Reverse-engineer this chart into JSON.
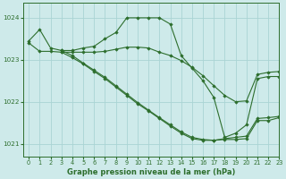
{
  "title": "Graphe pression niveau de la mer (hPa)",
  "bg_color": "#ceeaea",
  "grid_color": "#aad4d4",
  "line_color": "#2d6e2d",
  "xlim": [
    -0.5,
    23
  ],
  "ylim": [
    1020.7,
    1024.35
  ],
  "yticks": [
    1021,
    1022,
    1023,
    1024
  ],
  "xticks": [
    0,
    1,
    2,
    3,
    4,
    5,
    6,
    7,
    8,
    9,
    10,
    11,
    12,
    13,
    14,
    15,
    16,
    17,
    18,
    19,
    20,
    21,
    22,
    23
  ],
  "lines": [
    {
      "x": [
        0,
        1,
        2,
        3,
        4,
        5,
        6,
        7,
        8,
        9,
        10,
        11,
        12,
        13,
        14,
        15,
        16,
        17,
        18,
        19,
        20,
        21,
        22,
        23
      ],
      "y": [
        1023.45,
        1023.72,
        1023.28,
        1023.22,
        1023.22,
        1023.28,
        1023.32,
        1023.5,
        1023.65,
        1024.0,
        1024.0,
        1024.0,
        1024.0,
        1023.85,
        1023.1,
        1022.8,
        1022.5,
        1022.1,
        1021.15,
        1021.25,
        1021.45,
        1022.55,
        1022.6,
        1022.6
      ]
    },
    {
      "x": [
        0,
        1,
        2,
        3,
        4,
        5,
        6,
        7,
        8,
        9,
        10,
        11,
        12,
        13,
        14,
        15,
        16,
        17,
        18,
        19,
        20,
        21,
        22,
        23
      ],
      "y": [
        1023.4,
        1023.2,
        1023.2,
        1023.18,
        1023.18,
        1023.18,
        1023.18,
        1023.2,
        1023.25,
        1023.3,
        1023.3,
        1023.28,
        1023.18,
        1023.1,
        1022.98,
        1022.82,
        1022.62,
        1022.38,
        1022.15,
        1022.0,
        1022.02,
        1022.65,
        1022.7,
        1022.72
      ]
    },
    {
      "x": [
        3,
        4,
        5,
        6,
        7,
        8,
        9,
        10,
        11,
        12,
        13,
        14,
        15,
        16,
        17,
        18,
        19,
        20,
        21,
        22,
        23
      ],
      "y": [
        1023.18,
        1023.05,
        1022.9,
        1022.72,
        1022.55,
        1022.35,
        1022.15,
        1021.95,
        1021.78,
        1021.6,
        1021.42,
        1021.25,
        1021.12,
        1021.08,
        1021.08,
        1021.1,
        1021.1,
        1021.12,
        1021.55,
        1021.55,
        1021.62
      ]
    },
    {
      "x": [
        3,
        4,
        5,
        6,
        7,
        8,
        9,
        10,
        11,
        12,
        13,
        14,
        15,
        16,
        17,
        18,
        19,
        20,
        21,
        22,
        23
      ],
      "y": [
        1023.22,
        1023.1,
        1022.92,
        1022.75,
        1022.58,
        1022.38,
        1022.18,
        1021.98,
        1021.8,
        1021.62,
        1021.45,
        1021.28,
        1021.15,
        1021.1,
        1021.08,
        1021.12,
        1021.15,
        1021.18,
        1021.6,
        1021.62,
        1021.65
      ]
    }
  ]
}
